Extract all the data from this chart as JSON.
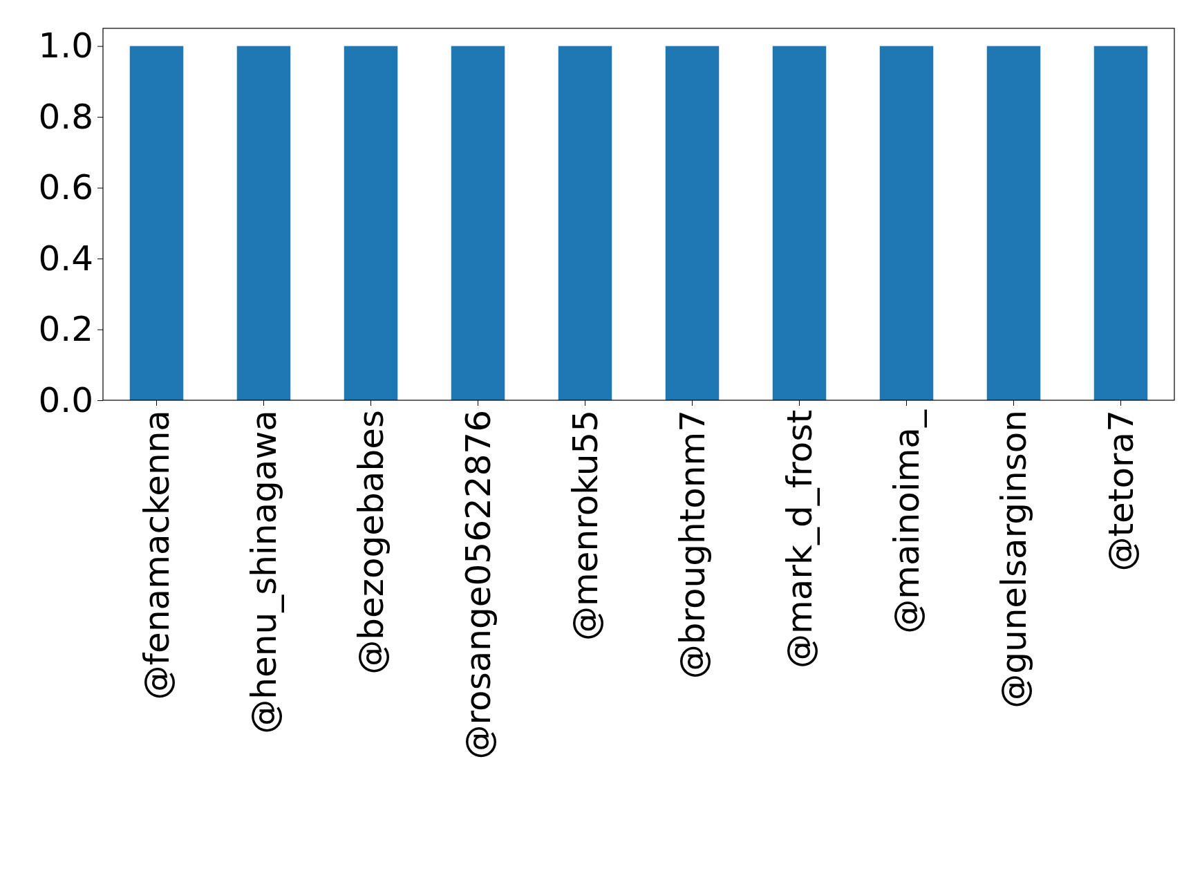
{
  "chart_data": {
    "type": "bar",
    "categories": [
      "@fenamackenna",
      "@henu_shinagawa",
      "@bezogebabes",
      "@rosange05622876",
      "@menroku55",
      "@broughtonm7",
      "@mark_d_frost",
      "@mainoima_",
      "@gunelsarginson",
      "@tetora7"
    ],
    "values": [
      1,
      1,
      1,
      1,
      1,
      1,
      1,
      1,
      1,
      1
    ],
    "color": "#1f77b4",
    "ylim": [
      0,
      1.05
    ],
    "yticks": [
      {
        "value": 0,
        "label": "0.0"
      },
      {
        "value": 0.2,
        "label": "0.2"
      },
      {
        "value": 0.4,
        "label": "0.4"
      },
      {
        "value": 0.6,
        "label": "0.6"
      },
      {
        "value": 0.8,
        "label": "0.8"
      },
      {
        "value": 1,
        "label": "1.0"
      }
    ]
  }
}
